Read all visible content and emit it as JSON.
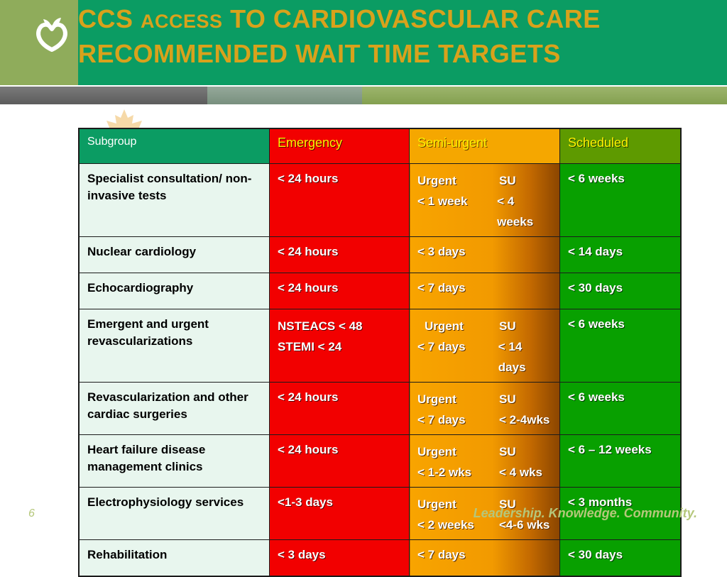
{
  "header": {
    "title_ccs": "CCS",
    "title_access": "ACCESS",
    "title_line1_rest": " TO CARDIOVASCULAR CARE",
    "title_line2": "RECOMMENDED WAIT TIME TARGETS"
  },
  "table": {
    "headers": [
      "Subgroup",
      "Emergency",
      "Semi-urgent",
      "Scheduled"
    ],
    "rows": [
      {
        "subgroup": "Specialist consultation/ non-invasive tests",
        "emergency": "< 24 hours",
        "semi": {
          "a1": "Urgent",
          "b1": "SU",
          "a2": "< 1 week",
          "b2": "< 4 weeks"
        },
        "scheduled": "< 6 weeks"
      },
      {
        "subgroup": "Nuclear cardiology",
        "emergency": "< 24 hours",
        "semi_text": "< 3 days",
        "scheduled": "< 14 days"
      },
      {
        "subgroup": "Echocardiography",
        "emergency": "< 24 hours",
        "semi_text": "< 7 days",
        "scheduled": "< 30 days"
      },
      {
        "subgroup": "Emergent and urgent revascularizations",
        "emergency_l1": "NSTEACS < 48",
        "emergency_l2": "STEMI < 24",
        "semi": {
          "a1": "Urgent",
          "b1": "SU",
          "a2": "< 7 days",
          "b2": "< 14 days"
        },
        "scheduled": "< 6 weeks"
      },
      {
        "subgroup": "Revascularization and other cardiac surgeries",
        "emergency": "< 24 hours",
        "semi": {
          "a1": "Urgent",
          "b1": "SU",
          "a2": "< 7 days",
          "b2": "< 2-4wks"
        },
        "scheduled": "< 6 weeks"
      },
      {
        "subgroup": "Heart failure disease management clinics",
        "emergency": "< 24 hours",
        "semi": {
          "a1": "Urgent",
          "b1": "SU",
          "a2": "< 1-2 wks",
          "b2": "< 4 wks"
        },
        "scheduled": "< 6 – 12 weeks"
      },
      {
        "subgroup": "Electrophysiology services",
        "emergency": "<1-3 days",
        "semi": {
          "a1": "Urgent",
          "b1": "SU",
          "a2": "< 2 weeks",
          "b2": "<4-6 wks"
        },
        "scheduled": "< 3 months"
      },
      {
        "subgroup": "Rehabilitation",
        "emergency": "< 3 days",
        "semi_text": "< 7 days",
        "scheduled": "< 30 days"
      }
    ]
  },
  "footer": {
    "page_number": "6",
    "tagline": "Leadership. Knowledge. Community."
  },
  "icons": {
    "logo": "ccs-heart-sprout-icon",
    "background": "maple-leaf-icon"
  },
  "colors": {
    "title_text": "#d8a21c",
    "title_bg": "#0b9c63",
    "logo_bg": "#8fac5b",
    "emergency": "#f20000",
    "semi_urgent": "#f5a700",
    "scheduled": "#08a000",
    "subgroup_bg": "#e8f6ee",
    "footer_text": "#b5c77b"
  }
}
